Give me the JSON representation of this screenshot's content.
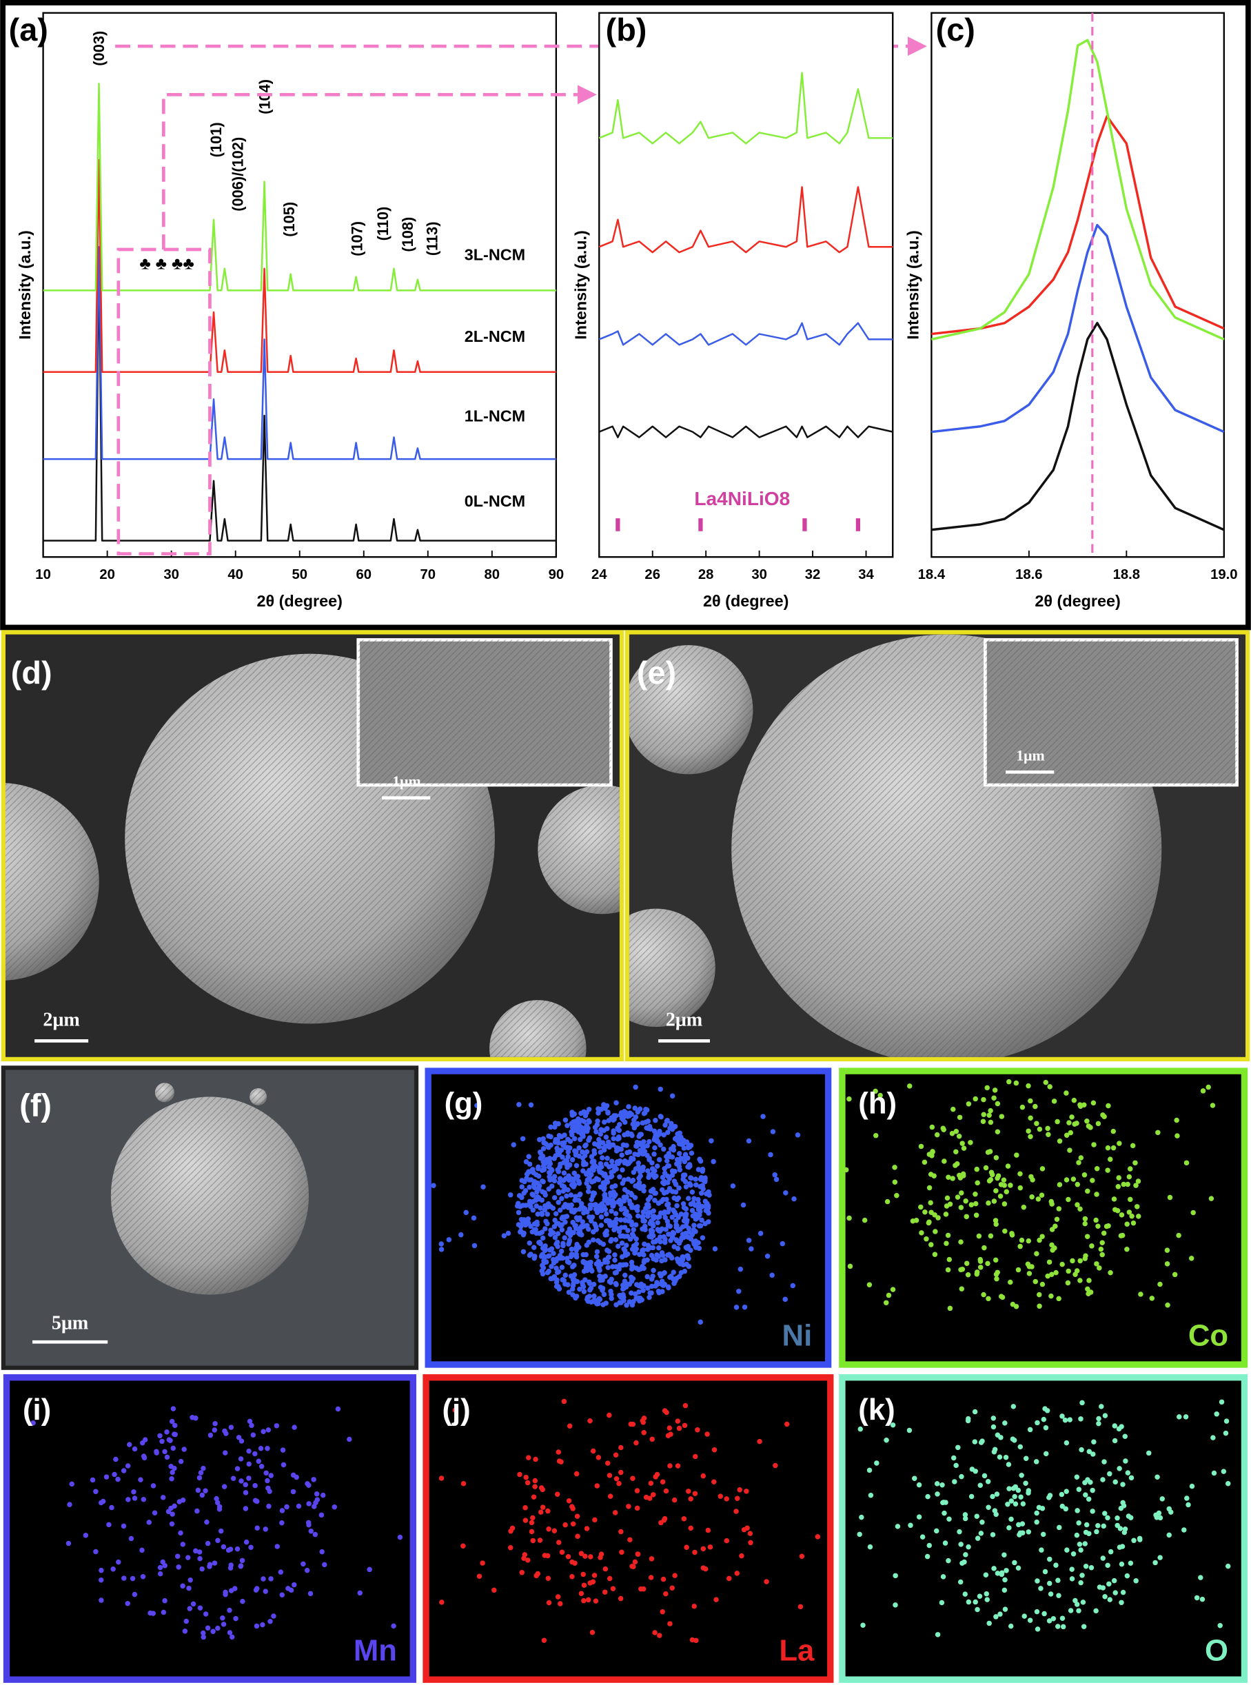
{
  "chart_data": [
    {
      "type": "line",
      "panel": "(a)",
      "x_label": "2θ (degree)",
      "y_label": "Intensity (a.u.)",
      "xlim": [
        10,
        90
      ],
      "xticks": [
        10,
        20,
        30,
        40,
        50,
        60,
        70,
        80,
        90
      ],
      "ylim": [
        0,
        100
      ],
      "x": [
        10,
        18.2,
        18.7,
        19.2,
        36,
        36.6,
        37.2,
        37.8,
        38.3,
        38.8,
        44,
        44.5,
        45,
        48.2,
        48.6,
        49,
        58.4,
        58.8,
        59.2,
        64.2,
        64.7,
        65.2,
        68,
        68.4,
        68.8,
        90
      ],
      "series": [
        {
          "name": "3L-NCM",
          "color": "#86ee3a",
          "values": [
            49,
            49,
            87,
            49,
            49,
            62,
            49,
            49,
            53,
            49,
            49,
            69,
            49,
            49,
            52,
            49,
            49,
            51.5,
            49,
            49,
            53,
            49,
            49,
            51,
            49,
            49
          ]
        },
        {
          "name": "2L-NCM",
          "color": "#f02a20",
          "values": [
            34,
            34,
            73,
            34,
            34,
            45,
            34,
            34,
            38,
            34,
            34,
            53,
            34,
            34,
            37,
            34,
            34,
            36.5,
            34,
            34,
            38,
            34,
            34,
            36,
            34,
            34
          ]
        },
        {
          "name": "1L-NCM",
          "color": "#3a5ce8",
          "values": [
            18,
            18,
            57,
            18,
            18,
            29,
            18,
            18,
            22,
            18,
            18,
            40,
            18,
            18,
            21,
            18,
            18,
            21,
            18,
            18,
            22,
            18,
            18,
            20,
            18,
            18
          ]
        },
        {
          "name": "0L-NCM",
          "color": "#111111",
          "values": [
            3,
            3,
            55,
            3,
            3,
            14,
            3,
            3,
            7,
            3,
            3,
            26,
            3,
            3,
            6,
            3,
            3,
            6,
            3,
            3,
            7,
            3,
            3,
            5,
            3,
            3
          ]
        }
      ],
      "peak_labels": [
        "(003)",
        "(101)",
        "(006)/(102)",
        "(104)",
        "(105)",
        "(107)",
        "(110)",
        "(108)",
        "(113)"
      ],
      "impurity_marks": "♣ ♣ ♣♣"
    },
    {
      "type": "line",
      "panel": "(b)",
      "x_label": "2θ (degree)",
      "y_label": "Intensity (a.u.)",
      "xlim": [
        24,
        35
      ],
      "xticks": [
        24,
        26,
        28,
        30,
        32,
        34
      ],
      "ylim": [
        0,
        100
      ],
      "x": [
        24,
        24.5,
        24.7,
        24.9,
        25.5,
        26,
        26.5,
        27,
        27.5,
        27.8,
        28.1,
        29,
        29.5,
        30,
        31,
        31.4,
        31.6,
        31.8,
        32.5,
        33,
        33.3,
        33.7,
        34.1,
        35
      ],
      "series": [
        {
          "color": "#86ee3a",
          "values": [
            77,
            78,
            84,
            77,
            78,
            76,
            78,
            76,
            78,
            80,
            77,
            78,
            76,
            78,
            77,
            78,
            89,
            77,
            78,
            76,
            78,
            86,
            77,
            77
          ]
        },
        {
          "color": "#f02a20",
          "values": [
            57,
            58,
            62,
            57,
            58,
            56,
            58,
            56,
            57,
            60,
            57,
            58,
            56,
            58,
            57,
            58,
            68,
            57,
            58,
            56,
            57,
            68,
            57,
            57
          ]
        },
        {
          "color": "#3a5ce8",
          "values": [
            40,
            41,
            41.5,
            39,
            41,
            39,
            41,
            39,
            40,
            41,
            39,
            41,
            39,
            41,
            40,
            41,
            43,
            40,
            41,
            39,
            41,
            43,
            40,
            40
          ]
        },
        {
          "color": "#111111",
          "values": [
            23,
            24,
            22,
            24,
            22,
            24,
            22,
            24,
            23,
            22,
            24,
            22,
            24,
            22,
            24,
            22,
            24,
            22,
            24,
            22,
            24,
            22,
            24,
            23
          ]
        }
      ],
      "reference": {
        "name": "La4NiLiO8",
        "x": [
          24.7,
          27.8,
          31.7,
          33.7
        ]
      }
    },
    {
      "type": "line",
      "panel": "(c)",
      "x_label": "2θ (degree)",
      "y_label": "Intensity (a.u.)",
      "xlim": [
        18.4,
        19.0
      ],
      "xticks": [
        18.4,
        18.6,
        18.8,
        {
          "value": 19.0,
          "label": "19.0"
        }
      ],
      "ylim": [
        0,
        100
      ],
      "x": [
        18.4,
        18.5,
        18.55,
        18.6,
        18.65,
        18.68,
        18.7,
        18.72,
        18.74,
        18.76,
        18.8,
        18.85,
        18.9,
        19.0
      ],
      "series": [
        {
          "color": "#86ee3a",
          "values": [
            40,
            42,
            45,
            52,
            68,
            82,
            94,
            95,
            91,
            82,
            64,
            50,
            44,
            40
          ]
        },
        {
          "color": "#f02a20",
          "values": [
            41,
            42,
            43,
            46,
            51,
            56,
            62,
            69,
            76,
            81,
            76,
            55,
            46,
            42
          ]
        },
        {
          "color": "#3a5ce8",
          "values": [
            23,
            24,
            25,
            28,
            34,
            41,
            49,
            56,
            61,
            59,
            46,
            33,
            27,
            23
          ]
        },
        {
          "color": "#111111",
          "values": [
            5,
            6,
            7,
            10,
            16,
            24,
            33,
            40,
            43,
            40,
            28,
            15,
            9,
            5
          ]
        }
      ],
      "reference_line_x": 18.73
    }
  ],
  "images": [
    {
      "panel": "(d)",
      "scale_bar": "2μm",
      "inset_scale_bar": "1μm"
    },
    {
      "panel": "(e)",
      "scale_bar": "2μm",
      "inset_scale_bar": "1μm"
    },
    {
      "panel": "(f)",
      "scale_bar": "5μm"
    }
  ],
  "maps": [
    {
      "panel": "(g)",
      "element": "Ni",
      "color": "#3f5ef2",
      "frame": "#3b4ff0",
      "label_color": "#4a78a8"
    },
    {
      "panel": "(h)",
      "element": "Co",
      "color": "#8ee23a",
      "frame": "#7ee82a",
      "label_color": "#8ee23a"
    },
    {
      "panel": "(i)",
      "element": "Mn",
      "color": "#5a45ee",
      "frame": "#4b3fe8",
      "label_color": "#5a45ee"
    },
    {
      "panel": "(j)",
      "element": "La",
      "color": "#ee2222",
      "frame": "#ee2020",
      "label_color": "#ee2222"
    },
    {
      "panel": "(k)",
      "element": "O",
      "color": "#7ff0c0",
      "frame": "#7ff0c8",
      "label_color": "#7ff0c0"
    }
  ]
}
